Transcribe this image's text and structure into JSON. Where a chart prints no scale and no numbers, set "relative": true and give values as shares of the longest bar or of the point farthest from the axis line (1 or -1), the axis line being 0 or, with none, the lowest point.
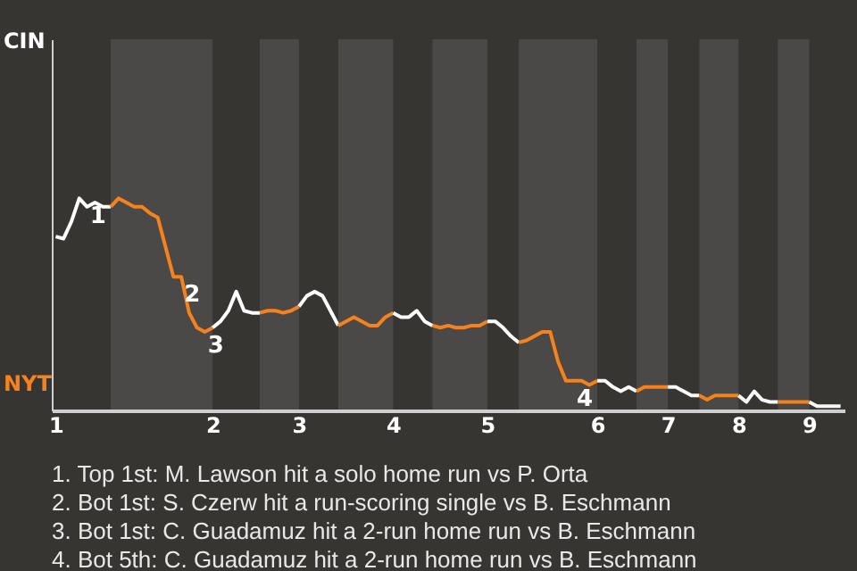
{
  "chart_data": {
    "type": "line",
    "relative": true,
    "categories": [
      "1",
      null,
      null,
      null,
      null,
      null,
      null,
      null,
      null,
      null,
      null,
      null,
      null,
      null,
      null,
      null,
      null,
      null,
      null,
      null,
      "2",
      null,
      null,
      null,
      null,
      null,
      null,
      null,
      null,
      null,
      null,
      "3",
      null,
      null,
      null,
      null,
      null,
      null,
      null,
      null,
      null,
      null,
      null,
      "4",
      null,
      null,
      null,
      null,
      null,
      null,
      null,
      null,
      null,
      null,
      null,
      "5",
      null,
      null,
      null,
      null,
      null,
      null,
      null,
      null,
      null,
      null,
      null,
      null,
      null,
      "6",
      null,
      null,
      null,
      null,
      null,
      null,
      null,
      null,
      "7",
      null,
      null,
      null,
      null,
      null,
      null,
      null,
      null,
      "8",
      null,
      null,
      null,
      null,
      null,
      null,
      null,
      null,
      "9",
      null,
      null,
      null,
      null
    ],
    "series": [
      {
        "name": "CIN",
        "color": "#ffffff",
        "values": [
          0.82,
          0.81,
          0.89,
          1,
          0.96,
          0.98,
          0.96,
          0.96,
          null,
          null,
          null,
          null,
          null,
          null,
          null,
          null,
          null,
          null,
          null,
          null,
          null,
          null,
          null,
          null,
          null,
          null,
          null,
          null,
          null,
          null,
          null,
          null,
          null,
          null,
          null,
          null,
          null,
          null,
          null,
          null,
          null,
          null,
          null,
          null,
          null,
          null,
          null,
          null,
          null,
          null,
          null,
          null,
          null,
          null,
          null,
          null,
          null,
          null,
          null,
          null,
          null,
          null,
          null,
          null,
          null,
          null,
          null,
          null,
          null,
          null,
          null,
          null,
          null,
          null,
          null,
          null,
          null,
          null,
          null,
          null,
          null,
          null,
          null,
          null,
          null,
          null,
          null,
          null,
          null,
          null,
          null,
          null,
          null,
          null,
          null,
          null,
          null,
          null,
          null,
          null,
          null
        ]
      },
      {
        "name": "NYT",
        "color": "#f5821f",
        "values": [
          null,
          null,
          null,
          null,
          null,
          null,
          null,
          0.96,
          1,
          0.98,
          0.96,
          0.96,
          0.93,
          0.91,
          0.77,
          0.63,
          0.63,
          0.46,
          0.39,
          0.37,
          0.39,
          null,
          null,
          null,
          null,
          null,
          null,
          null,
          null,
          null,
          null,
          null,
          null,
          null,
          null,
          null,
          null,
          null,
          null,
          null,
          null,
          null,
          null,
          null,
          null,
          null,
          null,
          null,
          null,
          null,
          null,
          null,
          null,
          null,
          null,
          null,
          null,
          null,
          null,
          null,
          null,
          null,
          null,
          null,
          null,
          null,
          null,
          null,
          null,
          null,
          null,
          null,
          null,
          null,
          null,
          null,
          null,
          null,
          null,
          null,
          null,
          null,
          null,
          null,
          null,
          null,
          null,
          null,
          null,
          null,
          null,
          null,
          null,
          null,
          null,
          null,
          null,
          null,
          null,
          null,
          null
        ]
      },
      {
        "color": "#fefefe",
        "values": [
          null,
          null,
          null,
          null,
          null,
          null,
          null,
          null,
          null,
          null,
          null,
          null,
          null,
          null,
          null,
          null,
          null,
          null,
          null,
          null,
          0.39,
          0.42,
          0.47,
          0.56,
          0.47,
          0.46,
          0.46,
          null,
          null,
          null,
          null,
          null,
          null,
          null,
          null,
          null,
          null,
          null,
          null,
          null,
          null,
          null,
          null,
          null,
          null,
          null,
          null,
          null,
          null,
          null,
          null,
          null,
          null,
          null,
          null,
          null,
          null,
          null,
          null,
          null,
          null,
          null,
          null,
          null,
          null,
          null,
          null,
          null,
          null,
          null,
          null,
          null,
          null,
          null,
          null,
          null,
          null,
          null,
          null,
          null,
          null,
          null,
          null,
          null,
          null,
          null,
          null,
          null,
          null,
          null,
          null,
          null,
          null,
          null,
          null,
          null,
          null,
          null,
          null,
          null,
          null
        ]
      },
      {
        "color": "#f5821e",
        "values": [
          null,
          null,
          null,
          null,
          null,
          null,
          null,
          null,
          null,
          null,
          null,
          null,
          null,
          null,
          null,
          null,
          null,
          null,
          null,
          null,
          null,
          null,
          null,
          null,
          null,
          null,
          0.46,
          0.47,
          0.47,
          0.46,
          0.47,
          0.49,
          null,
          null,
          null,
          null,
          null,
          null,
          null,
          null,
          null,
          null,
          null,
          null,
          null,
          null,
          null,
          null,
          null,
          null,
          null,
          null,
          null,
          null,
          null,
          null,
          null,
          null,
          null,
          null,
          null,
          null,
          null,
          null,
          null,
          null,
          null,
          null,
          null,
          null,
          null,
          null,
          null,
          null,
          null,
          null,
          null,
          null,
          null,
          null,
          null,
          null,
          null,
          null,
          null,
          null,
          null,
          null,
          null,
          null,
          null,
          null,
          null,
          null,
          null,
          null,
          null,
          null,
          null,
          null,
          null
        ]
      },
      {
        "color": "#fdfdfd",
        "values": [
          null,
          null,
          null,
          null,
          null,
          null,
          null,
          null,
          null,
          null,
          null,
          null,
          null,
          null,
          null,
          null,
          null,
          null,
          null,
          null,
          null,
          null,
          null,
          null,
          null,
          null,
          null,
          null,
          null,
          null,
          null,
          0.49,
          0.54,
          0.56,
          0.54,
          0.47,
          0.4,
          null,
          null,
          null,
          null,
          null,
          null,
          null,
          null,
          null,
          null,
          null,
          null,
          null,
          null,
          null,
          null,
          null,
          null,
          null,
          null,
          null,
          null,
          null,
          null,
          null,
          null,
          null,
          null,
          null,
          null,
          null,
          null,
          null,
          null,
          null,
          null,
          null,
          null,
          null,
          null,
          null,
          null,
          null,
          null,
          null,
          null,
          null,
          null,
          null,
          null,
          null,
          null,
          null,
          null,
          null,
          null,
          null,
          null,
          null,
          null,
          null,
          null,
          null,
          null
        ]
      },
      {
        "color": "#f5821d",
        "values": [
          null,
          null,
          null,
          null,
          null,
          null,
          null,
          null,
          null,
          null,
          null,
          null,
          null,
          null,
          null,
          null,
          null,
          null,
          null,
          null,
          null,
          null,
          null,
          null,
          null,
          null,
          null,
          null,
          null,
          null,
          null,
          null,
          null,
          null,
          null,
          null,
          0.4,
          0.42,
          0.44,
          0.42,
          0.4,
          0.4,
          0.44,
          0.46,
          null,
          null,
          null,
          null,
          null,
          null,
          null,
          null,
          null,
          null,
          null,
          null,
          null,
          null,
          null,
          null,
          null,
          null,
          null,
          null,
          null,
          null,
          null,
          null,
          null,
          null,
          null,
          null,
          null,
          null,
          null,
          null,
          null,
          null,
          null,
          null,
          null,
          null,
          null,
          null,
          null,
          null,
          null,
          null,
          null,
          null,
          null,
          null,
          null,
          null,
          null,
          null,
          null,
          null,
          null,
          null,
          null
        ]
      },
      {
        "color": "#fcfcfc",
        "values": [
          null,
          null,
          null,
          null,
          null,
          null,
          null,
          null,
          null,
          null,
          null,
          null,
          null,
          null,
          null,
          null,
          null,
          null,
          null,
          null,
          null,
          null,
          null,
          null,
          null,
          null,
          null,
          null,
          null,
          null,
          null,
          null,
          null,
          null,
          null,
          null,
          null,
          null,
          null,
          null,
          null,
          null,
          null,
          0.46,
          0.44,
          0.44,
          0.47,
          0.42,
          0.4,
          null,
          null,
          null,
          null,
          null,
          null,
          null,
          null,
          null,
          null,
          null,
          null,
          null,
          null,
          null,
          null,
          null,
          null,
          null,
          null,
          null,
          null,
          null,
          null,
          null,
          null,
          null,
          null,
          null,
          null,
          null,
          null,
          null,
          null,
          null,
          null,
          null,
          null,
          null,
          null,
          null,
          null,
          null,
          null,
          null,
          null,
          null,
          null,
          null,
          null,
          null,
          null
        ]
      },
      {
        "color": "#f5821c",
        "values": [
          null,
          null,
          null,
          null,
          null,
          null,
          null,
          null,
          null,
          null,
          null,
          null,
          null,
          null,
          null,
          null,
          null,
          null,
          null,
          null,
          null,
          null,
          null,
          null,
          null,
          null,
          null,
          null,
          null,
          null,
          null,
          null,
          null,
          null,
          null,
          null,
          null,
          null,
          null,
          null,
          null,
          null,
          null,
          null,
          null,
          null,
          null,
          null,
          0.4,
          0.39,
          0.4,
          0.39,
          0.39,
          0.4,
          0.4,
          0.42,
          null,
          null,
          null,
          null,
          null,
          null,
          null,
          null,
          null,
          null,
          null,
          null,
          null,
          null,
          null,
          null,
          null,
          null,
          null,
          null,
          null,
          null,
          null,
          null,
          null,
          null,
          null,
          null,
          null,
          null,
          null,
          null,
          null,
          null,
          null,
          null,
          null,
          null,
          null,
          null,
          null,
          null,
          null,
          null,
          null
        ]
      },
      {
        "color": "#fbfbfb",
        "values": [
          null,
          null,
          null,
          null,
          null,
          null,
          null,
          null,
          null,
          null,
          null,
          null,
          null,
          null,
          null,
          null,
          null,
          null,
          null,
          null,
          null,
          null,
          null,
          null,
          null,
          null,
          null,
          null,
          null,
          null,
          null,
          null,
          null,
          null,
          null,
          null,
          null,
          null,
          null,
          null,
          null,
          null,
          null,
          null,
          null,
          null,
          null,
          null,
          null,
          null,
          null,
          null,
          null,
          null,
          null,
          0.42,
          0.42,
          0.39,
          0.35,
          0.32,
          null,
          null,
          null,
          null,
          null,
          null,
          null,
          null,
          null,
          null,
          null,
          null,
          null,
          null,
          null,
          null,
          null,
          null,
          null,
          null,
          null,
          null,
          null,
          null,
          null,
          null,
          null,
          null,
          null,
          null,
          null,
          null,
          null,
          null,
          null,
          null,
          null,
          null,
          null,
          null,
          null
        ]
      },
      {
        "color": "#f5821b",
        "values": [
          null,
          null,
          null,
          null,
          null,
          null,
          null,
          null,
          null,
          null,
          null,
          null,
          null,
          null,
          null,
          null,
          null,
          null,
          null,
          null,
          null,
          null,
          null,
          null,
          null,
          null,
          null,
          null,
          null,
          null,
          null,
          null,
          null,
          null,
          null,
          null,
          null,
          null,
          null,
          null,
          null,
          null,
          null,
          null,
          null,
          null,
          null,
          null,
          null,
          null,
          null,
          null,
          null,
          null,
          null,
          null,
          null,
          null,
          null,
          0.32,
          0.33,
          0.35,
          0.37,
          0.37,
          0.23,
          0.14,
          0.14,
          0.14,
          0.12,
          0.14,
          null,
          null,
          null,
          null,
          null,
          null,
          null,
          null,
          null,
          null,
          null,
          null,
          null,
          null,
          null,
          null,
          null,
          null,
          null,
          null,
          null,
          null,
          null,
          null,
          null,
          null,
          null,
          null,
          null,
          null,
          null
        ]
      },
      {
        "color": "#fafafa",
        "values": [
          null,
          null,
          null,
          null,
          null,
          null,
          null,
          null,
          null,
          null,
          null,
          null,
          null,
          null,
          null,
          null,
          null,
          null,
          null,
          null,
          null,
          null,
          null,
          null,
          null,
          null,
          null,
          null,
          null,
          null,
          null,
          null,
          null,
          null,
          null,
          null,
          null,
          null,
          null,
          null,
          null,
          null,
          null,
          null,
          null,
          null,
          null,
          null,
          null,
          null,
          null,
          null,
          null,
          null,
          null,
          null,
          null,
          null,
          null,
          null,
          null,
          null,
          null,
          null,
          null,
          null,
          null,
          null,
          null,
          0.14,
          0.14,
          0.11,
          0.09,
          0.11,
          0.09,
          null,
          null,
          null,
          null,
          null,
          null,
          null,
          null,
          null,
          null,
          null,
          null,
          null,
          null,
          null,
          null,
          null,
          null,
          null,
          null,
          null,
          null,
          null,
          null,
          null,
          null
        ]
      },
      {
        "color": "#f5821a",
        "values": [
          null,
          null,
          null,
          null,
          null,
          null,
          null,
          null,
          null,
          null,
          null,
          null,
          null,
          null,
          null,
          null,
          null,
          null,
          null,
          null,
          null,
          null,
          null,
          null,
          null,
          null,
          null,
          null,
          null,
          null,
          null,
          null,
          null,
          null,
          null,
          null,
          null,
          null,
          null,
          null,
          null,
          null,
          null,
          null,
          null,
          null,
          null,
          null,
          null,
          null,
          null,
          null,
          null,
          null,
          null,
          null,
          null,
          null,
          null,
          null,
          null,
          null,
          null,
          null,
          null,
          null,
          null,
          null,
          null,
          null,
          null,
          null,
          null,
          null,
          0.09,
          0.11,
          0.11,
          0.11,
          0.11,
          null,
          null,
          null,
          null,
          null,
          null,
          null,
          null,
          null,
          null,
          null,
          null,
          null,
          null,
          null,
          null,
          null,
          null,
          null,
          null,
          null,
          null
        ]
      },
      {
        "color": "#f9f9f9",
        "values": [
          null,
          null,
          null,
          null,
          null,
          null,
          null,
          null,
          null,
          null,
          null,
          null,
          null,
          null,
          null,
          null,
          null,
          null,
          null,
          null,
          null,
          null,
          null,
          null,
          null,
          null,
          null,
          null,
          null,
          null,
          null,
          null,
          null,
          null,
          null,
          null,
          null,
          null,
          null,
          null,
          null,
          null,
          null,
          null,
          null,
          null,
          null,
          null,
          null,
          null,
          null,
          null,
          null,
          null,
          null,
          null,
          null,
          null,
          null,
          null,
          null,
          null,
          null,
          null,
          null,
          null,
          null,
          null,
          null,
          null,
          null,
          null,
          null,
          null,
          null,
          null,
          null,
          null,
          0.11,
          0.11,
          0.09,
          0.07,
          0.07,
          null,
          null,
          null,
          null,
          null,
          null,
          null,
          null,
          null,
          null,
          null,
          null,
          null,
          null,
          null,
          null,
          null,
          null
        ]
      },
      {
        "color": "#f58219",
        "values": [
          null,
          null,
          null,
          null,
          null,
          null,
          null,
          null,
          null,
          null,
          null,
          null,
          null,
          null,
          null,
          null,
          null,
          null,
          null,
          null,
          null,
          null,
          null,
          null,
          null,
          null,
          null,
          null,
          null,
          null,
          null,
          null,
          null,
          null,
          null,
          null,
          null,
          null,
          null,
          null,
          null,
          null,
          null,
          null,
          null,
          null,
          null,
          null,
          null,
          null,
          null,
          null,
          null,
          null,
          null,
          null,
          null,
          null,
          null,
          null,
          null,
          null,
          null,
          null,
          null,
          null,
          null,
          null,
          null,
          null,
          null,
          null,
          null,
          null,
          null,
          null,
          null,
          null,
          null,
          null,
          null,
          null,
          0.07,
          0.05,
          0.07,
          0.07,
          0.07,
          0.07,
          null,
          null,
          null,
          null,
          null,
          null,
          null,
          null,
          null,
          null,
          null,
          null,
          null
        ]
      },
      {
        "color": "#f8f8f8",
        "values": [
          null,
          null,
          null,
          null,
          null,
          null,
          null,
          null,
          null,
          null,
          null,
          null,
          null,
          null,
          null,
          null,
          null,
          null,
          null,
          null,
          null,
          null,
          null,
          null,
          null,
          null,
          null,
          null,
          null,
          null,
          null,
          null,
          null,
          null,
          null,
          null,
          null,
          null,
          null,
          null,
          null,
          null,
          null,
          null,
          null,
          null,
          null,
          null,
          null,
          null,
          null,
          null,
          null,
          null,
          null,
          null,
          null,
          null,
          null,
          null,
          null,
          null,
          null,
          null,
          null,
          null,
          null,
          null,
          null,
          null,
          null,
          null,
          null,
          null,
          null,
          null,
          null,
          null,
          null,
          null,
          null,
          null,
          null,
          null,
          null,
          null,
          null,
          0.07,
          0.04,
          0.09,
          0.05,
          0.04,
          0.04,
          null,
          null,
          null,
          null,
          null,
          null,
          null,
          null
        ]
      },
      {
        "color": "#f58218",
        "values": [
          null,
          null,
          null,
          null,
          null,
          null,
          null,
          null,
          null,
          null,
          null,
          null,
          null,
          null,
          null,
          null,
          null,
          null,
          null,
          null,
          null,
          null,
          null,
          null,
          null,
          null,
          null,
          null,
          null,
          null,
          null,
          null,
          null,
          null,
          null,
          null,
          null,
          null,
          null,
          null,
          null,
          null,
          null,
          null,
          null,
          null,
          null,
          null,
          null,
          null,
          null,
          null,
          null,
          null,
          null,
          null,
          null,
          null,
          null,
          null,
          null,
          null,
          null,
          null,
          null,
          null,
          null,
          null,
          null,
          null,
          null,
          null,
          null,
          null,
          null,
          null,
          null,
          null,
          null,
          null,
          null,
          null,
          null,
          null,
          null,
          null,
          null,
          null,
          null,
          null,
          null,
          null,
          0.04,
          0.04,
          0.04,
          0.04,
          0.04,
          null,
          null,
          null,
          null
        ]
      },
      {
        "color": "#f7f7f7",
        "values": [
          null,
          null,
          null,
          null,
          null,
          null,
          null,
          null,
          null,
          null,
          null,
          null,
          null,
          null,
          null,
          null,
          null,
          null,
          null,
          null,
          null,
          null,
          null,
          null,
          null,
          null,
          null,
          null,
          null,
          null,
          null,
          null,
          null,
          null,
          null,
          null,
          null,
          null,
          null,
          null,
          null,
          null,
          null,
          null,
          null,
          null,
          null,
          null,
          null,
          null,
          null,
          null,
          null,
          null,
          null,
          null,
          null,
          null,
          null,
          null,
          null,
          null,
          null,
          null,
          null,
          null,
          null,
          null,
          null,
          null,
          null,
          null,
          null,
          null,
          null,
          null,
          null,
          null,
          null,
          null,
          null,
          null,
          null,
          null,
          null,
          null,
          null,
          null,
          null,
          null,
          null,
          null,
          null,
          null,
          null,
          null,
          0.04,
          0.02,
          0.02,
          0.02,
          0.02
        ]
      }
    ],
    "annotations": [
      {
        "text": "1",
        "y": 1
      },
      {
        "text": "2",
        "y": 0.63
      },
      {
        "text": "3",
        "y": 0.39
      },
      {
        "text": "4",
        "y": 0.14
      },
      "1. Top 1st: M. Lawson hit a solo home run vs P. Orta",
      "2. Bot 1st: S. Czerw hit a run-scoring single vs B. Eschmann",
      "3. Bot 1st: C. Guadamuz hit a 2-run home run vs B. Eschmann",
      "4. Bot 5th: C. Guadamuz hit a 2-run home run vs B. Eschmann"
    ]
  }
}
